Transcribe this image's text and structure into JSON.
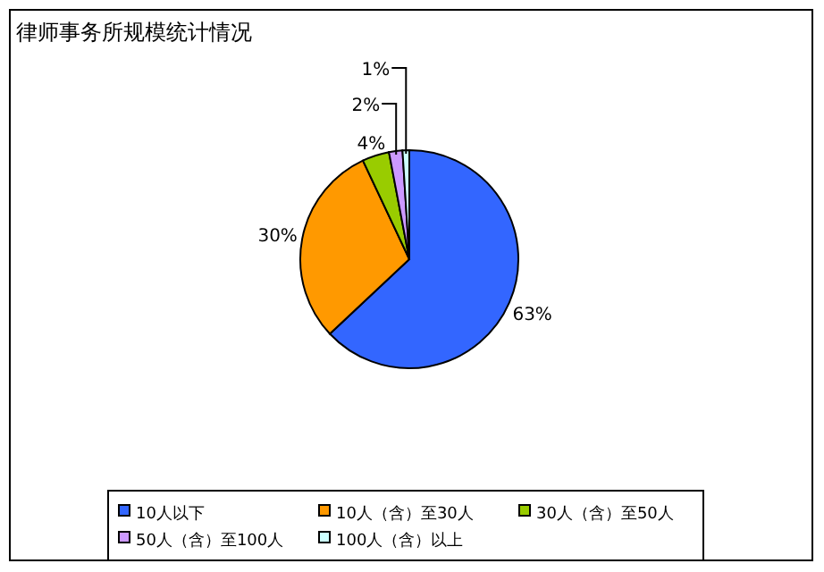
{
  "chart_data": {
    "type": "pie",
    "title": "律师事务所规模统计情况",
    "categories": [
      "10人以下",
      "10人（含）至30人",
      "30人（含）至50人",
      "50人（含）至100人",
      "100人（含）以上"
    ],
    "values": [
      63,
      30,
      4,
      2,
      1
    ],
    "colors": [
      "#3366ff",
      "#ff9900",
      "#99cc00",
      "#cc99ff",
      "#ccffff"
    ],
    "value_labels": [
      "63%",
      "30%",
      "4%",
      "2%",
      "1%"
    ],
    "legend": "bottom"
  }
}
